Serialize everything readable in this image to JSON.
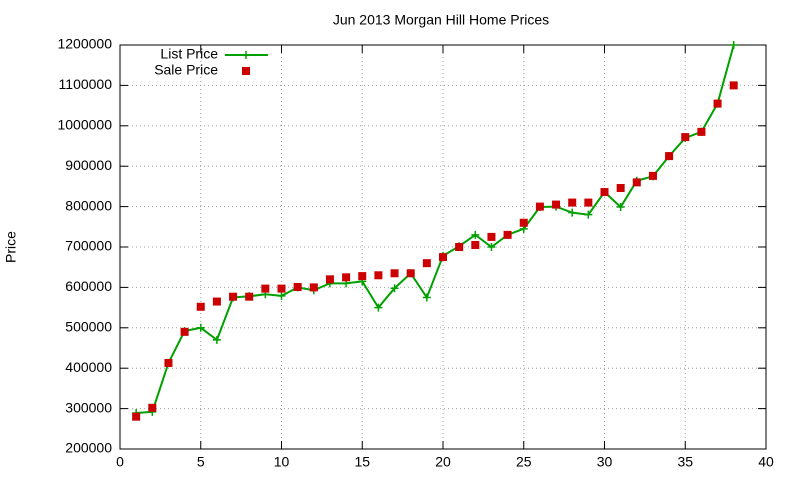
{
  "chart_data": {
    "type": "line",
    "title": "Jun 2013 Morgan Hill Home Prices",
    "y_label": "Price",
    "x": [
      1,
      2,
      3,
      4,
      5,
      6,
      7,
      8,
      9,
      10,
      11,
      12,
      13,
      14,
      15,
      16,
      17,
      18,
      19,
      20,
      21,
      22,
      23,
      24,
      25,
      26,
      27,
      28,
      29,
      30,
      31,
      32,
      33,
      34,
      35,
      36,
      37,
      38
    ],
    "series": [
      {
        "name": "List Price",
        "color": "#00a000",
        "style": "linespoints",
        "values": [
          289000,
          292000,
          413000,
          492000,
          500000,
          470000,
          575000,
          578000,
          583000,
          579000,
          600000,
          593000,
          610000,
          610000,
          615000,
          550000,
          598000,
          635000,
          575000,
          678000,
          702000,
          730000,
          700000,
          730000,
          745000,
          799000,
          800000,
          785000,
          780000,
          836000,
          799000,
          864000,
          875000,
          925000,
          970000,
          985000,
          1055000,
          1200000
        ]
      },
      {
        "name": "Sale Price",
        "color": "#cc0000",
        "style": "points",
        "values": [
          280000,
          302000,
          413000,
          490000,
          552000,
          565000,
          577000,
          577000,
          597000,
          597000,
          601000,
          600000,
          620000,
          625000,
          628000,
          630000,
          635000,
          635000,
          660000,
          675000,
          700000,
          705000,
          725000,
          730000,
          760000,
          800000,
          805000,
          810000,
          810000,
          836000,
          846000,
          860000,
          876000,
          925000,
          972000,
          985000,
          1055000,
          1100000
        ]
      }
    ],
    "xlim": [
      0,
      40
    ],
    "xticks": [
      0,
      5,
      10,
      15,
      20,
      25,
      30,
      35,
      40
    ],
    "ylim": [
      200000,
      1200000
    ],
    "yticks": [
      200000,
      300000,
      400000,
      500000,
      600000,
      700000,
      800000,
      900000,
      1000000,
      1100000,
      1200000
    ],
    "grid": true,
    "legend": "top-left"
  }
}
